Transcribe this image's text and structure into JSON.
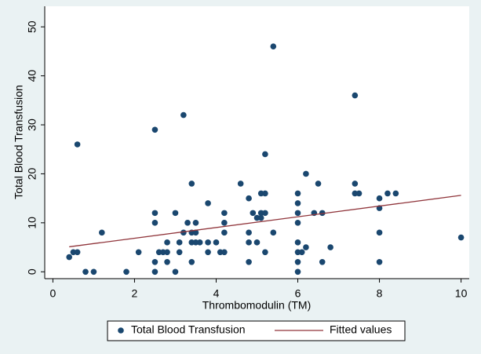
{
  "chart_data": {
    "type": "scatter",
    "x_label": "Thrombomodulin (TM)",
    "y_label": "Total Blood Transfusion",
    "xlim": [
      -0.2,
      10.2
    ],
    "ylim": [
      -1.4,
      54.2
    ],
    "xticks": [
      0,
      2,
      4,
      6,
      8,
      10
    ],
    "yticks": [
      0,
      10,
      20,
      30,
      40,
      50
    ],
    "legend": "bottom",
    "series": [
      {
        "name": "Total Blood Transfusion",
        "color": "#1a476f",
        "type": "scatter",
        "x": [
          0.4,
          0.5,
          0.6,
          0.6,
          0.8,
          1.0,
          1.2,
          1.8,
          2.1,
          2.5,
          2.5,
          2.5,
          2.5,
          2.5,
          2.6,
          2.7,
          2.8,
          2.8,
          2.8,
          3.0,
          3.0,
          3.1,
          3.1,
          3.2,
          3.2,
          3.3,
          3.4,
          3.4,
          3.4,
          3.4,
          3.5,
          3.5,
          3.5,
          3.6,
          3.8,
          3.8,
          3.8,
          4.0,
          4.1,
          4.2,
          4.2,
          4.2,
          4.2,
          4.6,
          4.8,
          4.8,
          4.8,
          4.8,
          4.9,
          5.0,
          5.0,
          5.1,
          5.1,
          5.1,
          5.2,
          5.2,
          5.2,
          5.2,
          5.4,
          5.4,
          6.0,
          6.0,
          6.0,
          6.0,
          6.0,
          6.0,
          6.0,
          6.0,
          6.1,
          6.2,
          6.2,
          6.4,
          6.5,
          6.6,
          6.6,
          6.8,
          7.4,
          7.4,
          7.4,
          7.5,
          8.0,
          8.0,
          8.0,
          8.0,
          8.2,
          8.4,
          10
        ],
        "values": [
          3,
          4,
          4,
          26,
          0,
          0,
          8,
          0,
          4,
          29,
          12,
          10,
          2,
          0,
          4,
          4,
          2,
          4,
          6,
          0,
          12,
          4,
          6,
          32,
          8,
          10,
          18,
          2,
          6,
          8,
          8,
          10,
          6,
          6,
          14,
          4,
          6,
          6,
          4,
          10,
          12,
          8,
          4,
          18,
          8,
          2,
          15,
          6,
          12,
          11,
          6,
          12,
          11,
          16,
          24,
          16,
          12,
          4,
          8,
          46,
          12,
          16,
          14,
          10,
          6,
          4,
          2,
          0,
          4,
          5,
          20,
          12,
          18,
          12,
          2,
          5,
          36,
          18,
          16,
          16,
          15,
          13,
          8,
          2,
          16,
          16,
          7
        ]
      },
      {
        "name": "Fitted values",
        "color": "#90353b",
        "type": "line",
        "x": [
          0.4,
          10
        ],
        "values": [
          5.1,
          15.6
        ]
      }
    ]
  }
}
